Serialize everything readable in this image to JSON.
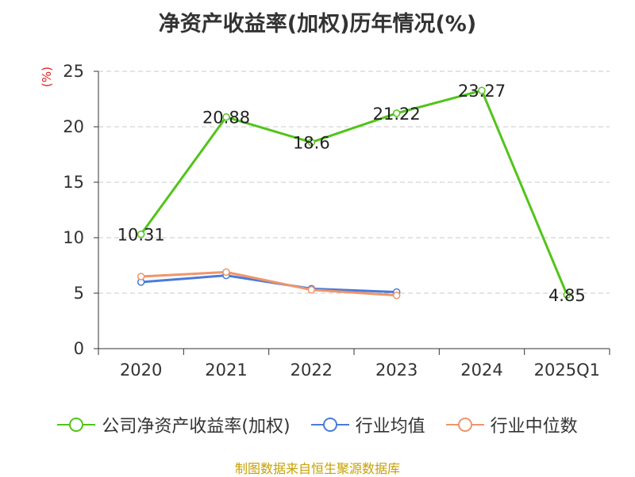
{
  "title": "净资产收益率(加权)历年情况(%)",
  "unit_label": "(%)",
  "source": "制图数据来自恒生聚源数据库",
  "chart_data": {
    "type": "line",
    "title": "净资产收益率(加权)历年情况(%)",
    "categories": [
      "2020",
      "2021",
      "2022",
      "2023",
      "2024",
      "2025Q1"
    ],
    "ylim": [
      0,
      25
    ],
    "yticks": [
      0,
      5,
      10,
      15,
      20,
      25
    ],
    "grid": true,
    "legend_position": "bottom",
    "series": [
      {
        "name": "公司净资产收益率(加权)",
        "color": "#52c41a",
        "values": [
          10.31,
          20.88,
          18.6,
          21.22,
          23.27,
          4.85
        ],
        "labels": [
          "10.31",
          "20.88",
          "18.6",
          "21.22",
          "23.27",
          "4.85"
        ]
      },
      {
        "name": "行业均值",
        "color": "#4a7bd9",
        "values": [
          6.0,
          6.6,
          5.4,
          5.1,
          null,
          null
        ]
      },
      {
        "name": "行业中位数",
        "color": "#f0956a",
        "values": [
          6.5,
          6.9,
          5.3,
          4.8,
          null,
          null
        ]
      }
    ]
  }
}
